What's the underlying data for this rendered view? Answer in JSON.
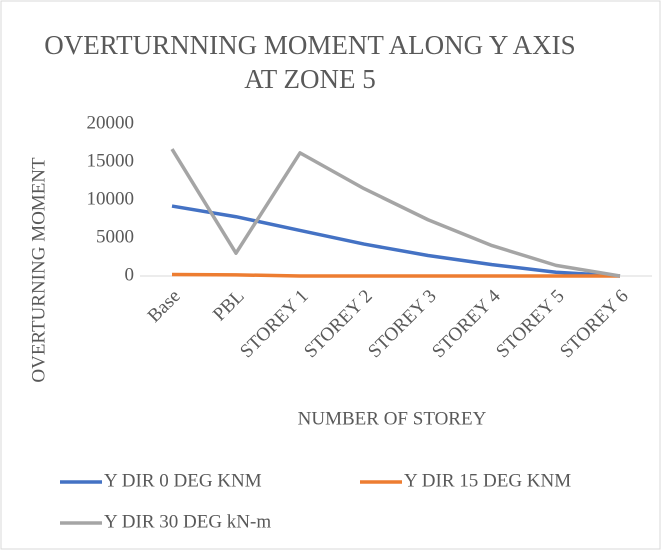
{
  "chart_data": {
    "type": "line",
    "title": "OVERTURNNING MOMENT ALONG Y AXIS AT ZONE 5",
    "x_label": "NUMBER OF STOREY",
    "y_label": "OVERTURNING MOMENT",
    "categories": [
      "Base",
      "PBL",
      "STOREY 1",
      "STOREY 2",
      "STOREY 3",
      "STOREY 4",
      "STOREY 5",
      "STOREY 6"
    ],
    "series": [
      {
        "name": "Y DIR 0 DEG KNM",
        "color": "#4472c4",
        "values": [
          9200,
          7800,
          6000,
          4200,
          2700,
          1500,
          500,
          0
        ]
      },
      {
        "name": "Y DIR 15 DEG KNM",
        "color": "#ed7d31",
        "values": [
          200,
          150,
          0,
          0,
          0,
          0,
          0,
          0
        ]
      },
      {
        "name": "Y DIR 30 DEG kN-m",
        "color": "#a5a5a5",
        "values": [
          16700,
          3000,
          16200,
          11500,
          7400,
          4000,
          1400,
          0
        ]
      }
    ],
    "ylim": [
      0,
      20000
    ],
    "yticks": [
      0,
      5000,
      10000,
      15000,
      20000
    ],
    "legend": "bottom"
  }
}
